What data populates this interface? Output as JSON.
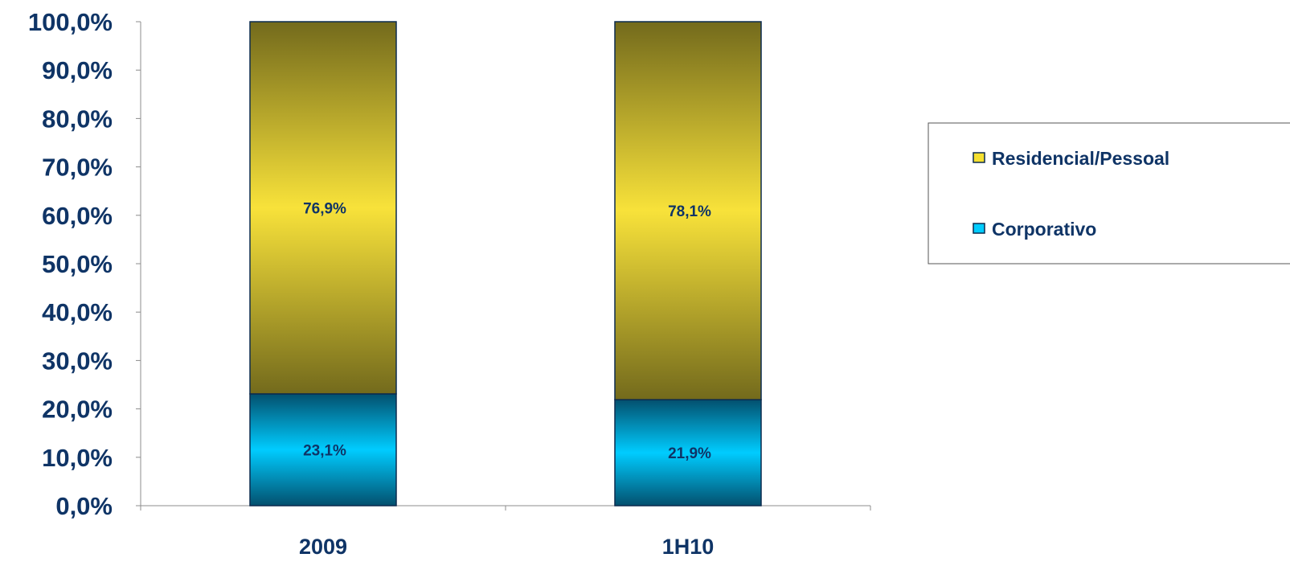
{
  "chart_data": {
    "type": "bar",
    "stacked": true,
    "categories": [
      "2009",
      "1H10"
    ],
    "series": [
      {
        "name": "Corporativo",
        "values": [
          23.1,
          21.9
        ],
        "labels": [
          "23,1%",
          "21,9%"
        ],
        "color": "#00ccff"
      },
      {
        "name": "Residencial/Pessoal",
        "values": [
          76.9,
          78.1
        ],
        "labels": [
          "76,9%",
          "78,1%"
        ],
        "color": "#f5e030"
      }
    ],
    "yticks": [
      "0,0%",
      "10,0%",
      "20,0%",
      "30,0%",
      "40,0%",
      "50,0%",
      "60,0%",
      "70,0%",
      "80,0%",
      "90,0%",
      "100,0%"
    ],
    "ylim": [
      0,
      100
    ],
    "legend_position": "right",
    "legend_order": [
      "Residencial/Pessoal",
      "Corporativo"
    ],
    "text_color": "#0f3466",
    "grid": false
  }
}
